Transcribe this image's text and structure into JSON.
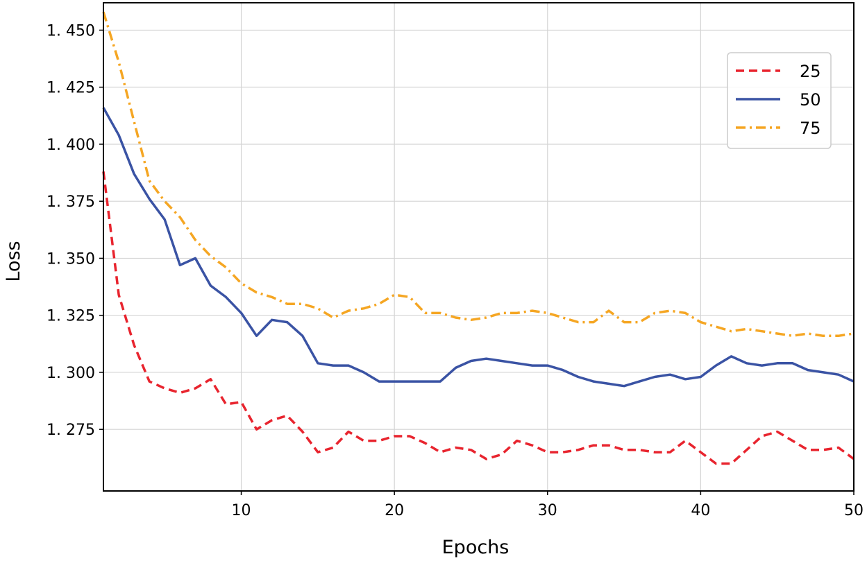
{
  "chart_data": {
    "type": "line",
    "xlabel": "Epochs",
    "ylabel": "Loss",
    "xlim": [
      1,
      50
    ],
    "ylim": [
      1.248,
      1.462
    ],
    "xticks": [
      10,
      20,
      30,
      40,
      50
    ],
    "yticks": [
      1.275,
      1.3,
      1.325,
      1.35,
      1.375,
      1.4,
      1.425,
      1.45
    ],
    "ytick_labels": [
      "1. 275",
      "1. 300",
      "1. 325",
      "1. 350",
      "1. 375",
      "1. 400",
      "1. 425",
      "1. 450"
    ],
    "grid": true,
    "legend_position": "top-right",
    "x": [
      1,
      2,
      3,
      4,
      5,
      6,
      7,
      8,
      9,
      10,
      11,
      12,
      13,
      14,
      15,
      16,
      17,
      18,
      19,
      20,
      21,
      22,
      23,
      24,
      25,
      26,
      27,
      28,
      29,
      30,
      31,
      32,
      33,
      34,
      35,
      36,
      37,
      38,
      39,
      40,
      41,
      42,
      43,
      44,
      45,
      46,
      47,
      48,
      49,
      50
    ],
    "series": [
      {
        "name": "25",
        "color": "#e8242e",
        "dash": "dashed",
        "values": [
          1.388,
          1.334,
          1.312,
          1.296,
          1.293,
          1.291,
          1.293,
          1.297,
          1.286,
          1.287,
          1.275,
          1.279,
          1.281,
          1.274,
          1.265,
          1.267,
          1.274,
          1.27,
          1.27,
          1.272,
          1.272,
          1.269,
          1.265,
          1.267,
          1.266,
          1.262,
          1.264,
          1.27,
          1.268,
          1.265,
          1.265,
          1.266,
          1.268,
          1.268,
          1.266,
          1.266,
          1.265,
          1.265,
          1.27,
          1.265,
          1.26,
          1.26,
          1.266,
          1.272,
          1.274,
          1.27,
          1.266,
          1.266,
          1.267,
          1.262
        ]
      },
      {
        "name": "50",
        "color": "#3a53a4",
        "dash": "solid",
        "values": [
          1.416,
          1.404,
          1.387,
          1.376,
          1.367,
          1.347,
          1.35,
          1.338,
          1.333,
          1.326,
          1.316,
          1.323,
          1.322,
          1.316,
          1.304,
          1.303,
          1.303,
          1.3,
          1.296,
          1.296,
          1.296,
          1.296,
          1.296,
          1.302,
          1.305,
          1.306,
          1.305,
          1.304,
          1.303,
          1.303,
          1.301,
          1.298,
          1.296,
          1.295,
          1.294,
          1.296,
          1.298,
          1.299,
          1.297,
          1.298,
          1.303,
          1.307,
          1.304,
          1.303,
          1.304,
          1.304,
          1.301,
          1.3,
          1.299,
          1.296
        ]
      },
      {
        "name": "75",
        "color": "#f5a623",
        "dash": "dashdot",
        "values": [
          1.458,
          1.436,
          1.41,
          1.384,
          1.375,
          1.368,
          1.358,
          1.351,
          1.346,
          1.339,
          1.335,
          1.333,
          1.33,
          1.33,
          1.328,
          1.324,
          1.327,
          1.328,
          1.33,
          1.334,
          1.333,
          1.326,
          1.326,
          1.324,
          1.323,
          1.324,
          1.326,
          1.326,
          1.327,
          1.326,
          1.324,
          1.322,
          1.322,
          1.327,
          1.322,
          1.322,
          1.326,
          1.327,
          1.326,
          1.322,
          1.32,
          1.318,
          1.319,
          1.318,
          1.317,
          1.316,
          1.317,
          1.316,
          1.316,
          1.317
        ]
      }
    ]
  }
}
